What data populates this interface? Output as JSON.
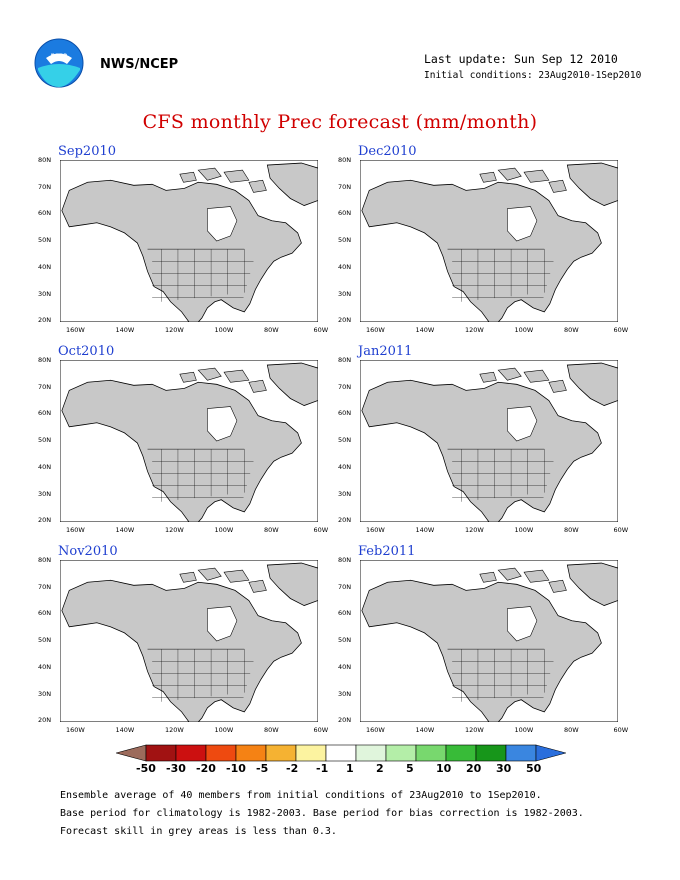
{
  "header": {
    "agency": "NWS/NCEP",
    "last_update": "Last update: Sun Sep 12 2010",
    "initial_conditions": "Initial conditions: 23Aug2010-1Sep2010",
    "logo_icon": "noaa-logo-icon"
  },
  "title": "CFS monthly Prec forecast (mm/month)",
  "axes": {
    "lat_labels": [
      "80N",
      "70N",
      "60N",
      "50N",
      "40N",
      "30N",
      "20N"
    ],
    "lon_labels": [
      "160W",
      "140W",
      "120W",
      "100W",
      "80W",
      "60W"
    ]
  },
  "panels": [
    {
      "title": "Sep2010"
    },
    {
      "title": "Dec2010"
    },
    {
      "title": "Oct2010"
    },
    {
      "title": "Jan2011"
    },
    {
      "title": "Nov2010"
    },
    {
      "title": "Feb2011"
    }
  ],
  "colorbar": {
    "labels": [
      "-50",
      "-30",
      "-20",
      "-10",
      "-5",
      "-2",
      "-1",
      "1",
      "2",
      "5",
      "10",
      "20",
      "30",
      "50"
    ],
    "colors": [
      "#9c6b5c",
      "#a11212",
      "#cc1010",
      "#ee4a10",
      "#f58214",
      "#f5b232",
      "#fcf3a0",
      "#ffffff",
      "#e0f5dc",
      "#b4eea8",
      "#78d86e",
      "#38bb38",
      "#17961a",
      "#3a86e0",
      "#2a6edc"
    ]
  },
  "footer": {
    "line1": "Ensemble average of 40 members from initial conditions of 23Aug2010 to 1Sep2010.",
    "line2": "Base period for climatology is 1982-2003. Base period for bias correction is 1982-2003.",
    "line3": "Forecast skill in grey areas is less than 0.3."
  },
  "colors": {
    "land": "#c8c8c8",
    "title": "#d00000",
    "panel_title": "#1f3fd0"
  }
}
